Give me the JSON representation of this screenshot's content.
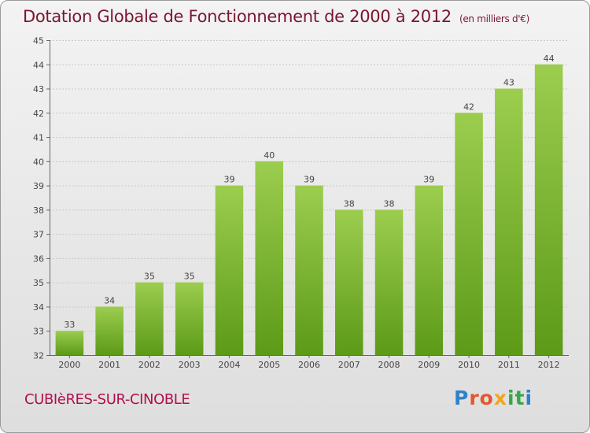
{
  "title": "Dotation Globale de Fonctionnement de 2000 à 2012",
  "unit_note": "(en milliers d'€)",
  "commune": "CUBIèRES-SUR-CINOBLE",
  "logo": {
    "text": "Proxiti",
    "letter_colors": [
      "#2f82c8",
      "#e4572e",
      "#e4572e",
      "#f2a51a",
      "#37a64a",
      "#37a64a",
      "#2f82c8"
    ]
  },
  "colors": {
    "bar_top": "#9ccd4f",
    "bar_bottom": "#5c9a18",
    "title": "#7a1530",
    "commune": "#b0104d"
  },
  "chart_data": {
    "type": "bar",
    "title": "Dotation Globale de Fonctionnement de 2000 à 2012",
    "subtitle": "(en milliers d'€)",
    "xlabel": "",
    "ylabel": "",
    "categories": [
      "2000",
      "2001",
      "2002",
      "2003",
      "2004",
      "2005",
      "2006",
      "2007",
      "2008",
      "2009",
      "2010",
      "2011",
      "2012"
    ],
    "values": [
      33,
      34,
      35,
      35,
      39,
      40,
      39,
      38,
      38,
      39,
      42,
      43,
      44
    ],
    "ylim": [
      32,
      45
    ],
    "yticks": [
      32,
      33,
      34,
      35,
      36,
      37,
      38,
      39,
      40,
      41,
      42,
      43,
      44,
      45
    ],
    "grid": "horizontal",
    "data_labels": true
  }
}
